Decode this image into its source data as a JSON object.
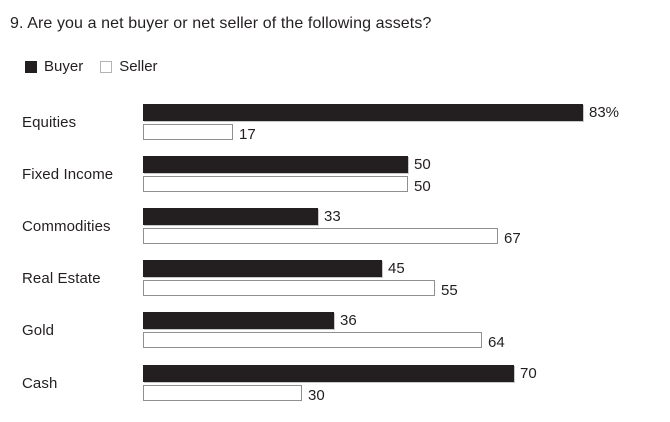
{
  "title": "9. Are you a net buyer or net seller of the following assets?",
  "legend": {
    "buyer_label": "Buyer",
    "seller_label": "Seller"
  },
  "colors": {
    "buyer_bar": "#231f20",
    "seller_bar_fill": "#ffffff",
    "seller_bar_border": "#8f8f8f",
    "text": "#231f20",
    "background": "#ffffff"
  },
  "chart_data": {
    "type": "bar",
    "orientation": "horizontal",
    "title": "9. Are you a net buyer or net seller of the following assets?",
    "categories": [
      "Equities",
      "Fixed Income",
      "Commodities",
      "Real Estate",
      "Gold",
      "Cash"
    ],
    "series": [
      {
        "name": "Buyer",
        "values": [
          83,
          50,
          33,
          45,
          36,
          70
        ]
      },
      {
        "name": "Seller",
        "values": [
          17,
          50,
          67,
          55,
          64,
          30
        ]
      }
    ],
    "xlim": [
      0,
      100
    ],
    "unit": "percent",
    "grid": false,
    "legend_position": "top-left",
    "rows": [
      {
        "label": "Equities",
        "buyer": 83,
        "seller": 17,
        "buyer_label": "83%",
        "seller_label": "17"
      },
      {
        "label": "Fixed Income",
        "buyer": 50,
        "seller": 50,
        "buyer_label": "50",
        "seller_label": "50"
      },
      {
        "label": "Commodities",
        "buyer": 33,
        "seller": 67,
        "buyer_label": "33",
        "seller_label": "67"
      },
      {
        "label": "Real Estate",
        "buyer": 45,
        "seller": 55,
        "buyer_label": "45",
        "seller_label": "55"
      },
      {
        "label": "Gold",
        "buyer": 36,
        "seller": 64,
        "buyer_label": "36",
        "seller_label": "64"
      },
      {
        "label": "Cash",
        "buyer": 70,
        "seller": 30,
        "buyer_label": "70",
        "seller_label": "30"
      }
    ]
  }
}
